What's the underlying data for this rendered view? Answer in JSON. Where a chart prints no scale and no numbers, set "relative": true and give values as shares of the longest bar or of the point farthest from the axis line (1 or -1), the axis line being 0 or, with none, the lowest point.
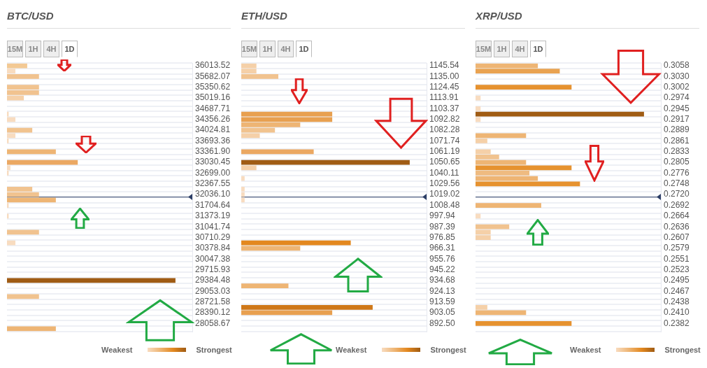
{
  "chart_data": [
    {
      "type": "bar",
      "orientation": "horizontal",
      "relative": true,
      "grid": "y",
      "title": "BTC/USD",
      "annotations": [
        "15M",
        "1H",
        "4H",
        "1D",
        "Weakest",
        "Strongest"
      ],
      "categories": [
        "36013.52",
        null,
        "35682.07",
        null,
        "35350.62",
        null,
        "35019.16",
        null,
        "34687.71",
        null,
        "34356.26",
        null,
        "34024.81",
        null,
        "33693.36",
        null,
        "33361.90",
        null,
        "33030.45",
        null,
        "32699.00",
        null,
        "32367.55",
        null,
        "32036.10",
        null,
        "31704.64",
        null,
        "31373.19",
        null,
        "31041.74",
        null,
        "30710.29",
        null,
        "30378.84",
        null,
        "30047.38",
        null,
        "29715.93",
        null,
        "29384.48",
        null,
        "29053.03",
        null,
        "28721.58",
        null,
        "28390.12",
        null,
        "28058.67",
        null
      ],
      "values": [
        0.12,
        0.05,
        0.19,
        null,
        0.19,
        0.19,
        0.1,
        null,
        null,
        0.01,
        0.05,
        null,
        0.15,
        0.05,
        0.01,
        null,
        0.29,
        null,
        0.42,
        0.02,
        0.01,
        null,
        null,
        0.15,
        0.19,
        0.29,
        0.01,
        null,
        0.01,
        null,
        null,
        0.19,
        null,
        0.05,
        null,
        null,
        null,
        null,
        null,
        null,
        1,
        null,
        null,
        0.19,
        null,
        null,
        null,
        null,
        null,
        0.29
      ],
      "colors": [
        "#f3c994",
        "#f8dcc0",
        "#f1c38f",
        null,
        "#f1c38f",
        "#f1c38f",
        "#f5d0a8",
        null,
        null,
        "#f8dcc0",
        "#f8dcc0",
        null,
        "#f1c38f",
        "#f8dcc0",
        "#f8dcc0",
        null,
        "#eeb574",
        null,
        "#eba862",
        "#f8dcc0",
        "#f8dcc0",
        null,
        null,
        "#f1c38f",
        "#f1c38f",
        "#eeb574",
        "#f8dcc0",
        null,
        "#f8dcc0",
        null,
        null,
        "#f1c38f",
        null,
        "#f8dcc0",
        null,
        null,
        null,
        null,
        null,
        null,
        "#a05c14",
        null,
        null,
        "#f1c38f",
        null,
        null,
        null,
        null,
        null,
        "#eeb574"
      ],
      "ref_lines": [
        {
          "axis": "y",
          "value": "32036.10",
          "color": "#2c3e66"
        }
      ]
    },
    {
      "type": "bar",
      "orientation": "horizontal",
      "relative": true,
      "grid": "y",
      "title": "ETH/USD",
      "annotations": [
        "15M",
        "1H",
        "4H",
        "1D",
        "Weakest",
        "Strongest"
      ],
      "categories": [
        "1145.54",
        null,
        "1135.00",
        null,
        "1124.45",
        null,
        "1113.91",
        null,
        "1103.37",
        null,
        "1092.82",
        null,
        "1082.28",
        null,
        "1071.74",
        null,
        "1061.19",
        null,
        "1050.65",
        null,
        "1040.11",
        null,
        "1029.56",
        null,
        "1019.02",
        null,
        "1008.48",
        null,
        "997.94",
        null,
        "987.39",
        null,
        "976.85",
        null,
        "966.31",
        null,
        "955.76",
        null,
        "945.22",
        null,
        "934.68",
        null,
        "924.13",
        null,
        "913.59",
        null,
        "903.05",
        null,
        "892.50",
        null
      ],
      "values": [
        0.09,
        0.09,
        0.22,
        null,
        null,
        null,
        null,
        null,
        null,
        0.54,
        0.54,
        0.35,
        0.2,
        0.11,
        null,
        null,
        0.43,
        null,
        1,
        0.09,
        null,
        0.02,
        null,
        0.02,
        0.02,
        0.02,
        null,
        null,
        null,
        null,
        null,
        null,
        null,
        0.65,
        0.35,
        null,
        null,
        null,
        null,
        null,
        null,
        0.28,
        null,
        null,
        null,
        0.78,
        0.54,
        null,
        null,
        null
      ],
      "colors": [
        "#f5d0a8",
        "#f5d0a8",
        "#f1c38f",
        null,
        null,
        null,
        null,
        null,
        null,
        "#e8a050",
        "#e8a050",
        "#eeb574",
        "#f1c38f",
        "#f5d0a8",
        null,
        null,
        "#eba862",
        null,
        "#a05c14",
        "#f5d0a8",
        null,
        "#f8dcc0",
        null,
        "#f8dcc0",
        "#f8dcc0",
        "#f8dcc0",
        null,
        null,
        null,
        null,
        null,
        null,
        null,
        "#e3881f",
        "#eeb574",
        null,
        null,
        null,
        null,
        null,
        null,
        "#eeb574",
        null,
        null,
        null,
        "#cf7818",
        "#e8a050",
        null,
        null,
        null
      ],
      "ref_lines": [
        {
          "axis": "y",
          "value": "1019.02",
          "color": "#2c3e66"
        }
      ]
    },
    {
      "type": "bar",
      "orientation": "horizontal",
      "relative": true,
      "grid": "y",
      "title": "XRP/USD",
      "annotations": [
        "15M",
        "1H",
        "4H",
        "1D",
        "Weakest",
        "Strongest"
      ],
      "categories": [
        "0.3058",
        null,
        "0.3030",
        null,
        "0.3002",
        null,
        "0.2974",
        null,
        "0.2945",
        null,
        "0.2917",
        null,
        "0.2889",
        null,
        "0.2861",
        null,
        "0.2833",
        null,
        "0.2805",
        null,
        "0.2776",
        null,
        "0.2748",
        null,
        "0.2720",
        null,
        "0.2692",
        null,
        "0.2664",
        null,
        "0.2636",
        null,
        "0.2607",
        null,
        "0.2579",
        null,
        "0.2551",
        null,
        "0.2523",
        null,
        "0.2495",
        null,
        "0.2467",
        null,
        "0.2438",
        null,
        "0.2410",
        null,
        "0.2382",
        null
      ],
      "values": [
        0.37,
        0.5,
        null,
        null,
        0.57,
        null,
        0.03,
        null,
        0.03,
        1,
        0.03,
        null,
        null,
        0.3,
        0.07,
        null,
        0.09,
        0.14,
        0.3,
        0.57,
        0.32,
        0.37,
        0.62,
        null,
        null,
        null,
        0.39,
        null,
        0.03,
        null,
        0.2,
        0.09,
        0.09,
        null,
        null,
        null,
        null,
        null,
        null,
        null,
        null,
        null,
        null,
        null,
        null,
        0.07,
        0.3,
        null,
        0.57,
        null
      ],
      "colors": [
        "#eeb574",
        "#e9a351",
        null,
        null,
        "#e6922f",
        null,
        "#f8dcc0",
        null,
        "#f8dcc0",
        "#a05c14",
        "#f8dcc0",
        null,
        null,
        "#eeb574",
        "#f5d0a8",
        null,
        "#f5d0a8",
        "#f1c38f",
        "#eeb574",
        "#e6922f",
        "#efbb80",
        "#eeb574",
        "#e6922f",
        null,
        null,
        null,
        "#eeb574",
        null,
        "#f8dcc0",
        null,
        "#f1c38f",
        "#f5d0a8",
        "#f5d0a8",
        null,
        null,
        null,
        null,
        null,
        null,
        null,
        null,
        null,
        null,
        null,
        null,
        "#f5d0a8",
        "#eeb574",
        null,
        "#e6922f",
        null
      ],
      "ref_lines": [
        {
          "axis": "y",
          "value": "0.2720",
          "color": "#2c3e66"
        }
      ]
    }
  ]
}
